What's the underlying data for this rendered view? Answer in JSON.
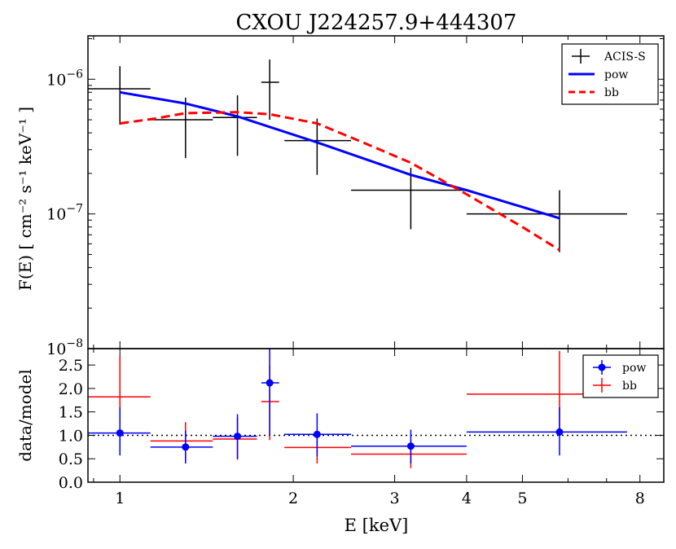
{
  "chart_data": [
    {
      "type": "line",
      "title": "CXOU J224257.9+444307",
      "xlabel": "",
      "ylabel": "F(E) [ cm⁻² s⁻¹ keV⁻¹ ]",
      "xscale": "log",
      "yscale": "log",
      "xlim": [
        0.88,
        8.8
      ],
      "ylim": [
        1e-08,
        2.1e-06
      ],
      "ytick_labels": [
        {
          "value": 1e-08,
          "base": "10",
          "exp": "−8"
        },
        {
          "value": 1e-07,
          "base": "10",
          "exp": "−7"
        },
        {
          "value": 1e-06,
          "base": "10",
          "exp": "−6"
        }
      ],
      "legend": {
        "placement": "top-right",
        "entries": [
          {
            "label": "ACIS-S",
            "style": "errorbar",
            "color": "#000000"
          },
          {
            "label": "pow",
            "style": "solid",
            "color": "#0000ff"
          },
          {
            "label": "bb",
            "style": "dashed",
            "color": "#ff0000"
          }
        ]
      },
      "data_points": [
        {
          "x": 1.0,
          "xlo": 0.88,
          "xhi": 1.13,
          "y": 8.5e-07,
          "ylo": 4.6e-07,
          "yhi": 1.25e-06
        },
        {
          "x": 1.3,
          "xlo": 1.13,
          "xhi": 1.45,
          "y": 5e-07,
          "ylo": 2.6e-07,
          "yhi": 7.3e-07
        },
        {
          "x": 1.6,
          "xlo": 1.45,
          "xhi": 1.73,
          "y": 5.2e-07,
          "ylo": 2.7e-07,
          "yhi": 7.6e-07
        },
        {
          "x": 1.82,
          "xlo": 1.76,
          "xhi": 1.89,
          "y": 9.5e-07,
          "ylo": 5e-07,
          "yhi": 1.4e-06
        },
        {
          "x": 2.2,
          "xlo": 1.93,
          "xhi": 2.52,
          "y": 3.5e-07,
          "ylo": 1.95e-07,
          "yhi": 5.1e-07
        },
        {
          "x": 3.2,
          "xlo": 2.52,
          "xhi": 4.0,
          "y": 1.5e-07,
          "ylo": 7.7e-08,
          "yhi": 2.2e-07
        },
        {
          "x": 5.8,
          "xlo": 4.0,
          "xhi": 7.6,
          "y": 1e-07,
          "ylo": 5.2e-08,
          "yhi": 1.5e-07
        }
      ],
      "series": [
        {
          "name": "pow",
          "color": "#0000ff",
          "dash": "solid",
          "x": [
            1.0,
            1.3,
            1.6,
            2.2,
            3.2,
            4.0,
            5.8
          ],
          "y": [
            8e-07,
            6.6e-07,
            5.3e-07,
            3.4e-07,
            1.95e-07,
            1.5e-07,
            9.3e-08
          ]
        },
        {
          "name": "bb",
          "color": "#ff0000",
          "dash": "dashed",
          "x": [
            1.0,
            1.15,
            1.3,
            1.6,
            1.82,
            2.2,
            2.6,
            3.2,
            4.0,
            5.0,
            5.8
          ],
          "y": [
            4.7e-07,
            5.1e-07,
            5.6e-07,
            5.7e-07,
            5.5e-07,
            4.7e-07,
            3.5e-07,
            2.4e-07,
            1.4e-07,
            8e-08,
            5.4e-08
          ]
        }
      ]
    },
    {
      "type": "scatter",
      "title": "",
      "xlabel": "E [keV]",
      "ylabel": "data/model",
      "xscale": "log",
      "xlim": [
        0.88,
        8.8
      ],
      "ylim": [
        0.0,
        2.85
      ],
      "xticks": [
        1,
        2,
        3,
        4,
        5,
        8
      ],
      "xtick_labels": [
        "1",
        "2",
        "3",
        "4",
        "5",
        "8"
      ],
      "yticks": [
        0.0,
        0.5,
        1.0,
        1.5,
        2.0,
        2.5
      ],
      "ytick_labels": [
        "0.0",
        "0.5",
        "1.0",
        "1.5",
        "2.0",
        "2.5"
      ],
      "reference_line": {
        "y": 1.0,
        "style": "dotted"
      },
      "legend": {
        "placement": "top-right",
        "entries": [
          {
            "label": "pow",
            "color": "#0000ff"
          },
          {
            "label": "bb",
            "color": "#ff0000"
          }
        ]
      },
      "series": [
        {
          "name": "pow",
          "color": "#0000ff",
          "marker": "circle",
          "points": [
            {
              "x": 1.0,
              "xlo": 0.88,
              "xhi": 1.13,
              "y": 1.05,
              "ylo": 0.57,
              "yhi": 1.6
            },
            {
              "x": 1.3,
              "xlo": 1.13,
              "xhi": 1.45,
              "y": 0.75,
              "ylo": 0.4,
              "yhi": 1.1
            },
            {
              "x": 1.6,
              "xlo": 1.45,
              "xhi": 1.73,
              "y": 0.98,
              "ylo": 0.5,
              "yhi": 1.45
            },
            {
              "x": 1.82,
              "xlo": 1.76,
              "xhi": 1.89,
              "y": 2.12,
              "ylo": 1.0,
              "yhi": 2.85
            },
            {
              "x": 2.2,
              "xlo": 1.93,
              "xhi": 2.52,
              "y": 1.02,
              "ylo": 0.55,
              "yhi": 1.47
            },
            {
              "x": 3.2,
              "xlo": 2.52,
              "xhi": 4.0,
              "y": 0.77,
              "ylo": 0.4,
              "yhi": 1.12
            },
            {
              "x": 5.8,
              "xlo": 4.0,
              "xhi": 7.6,
              "y": 1.07,
              "ylo": 0.57,
              "yhi": 1.6
            }
          ]
        },
        {
          "name": "bb",
          "color": "#ff0000",
          "marker": "none",
          "points": [
            {
              "x": 1.0,
              "xlo": 0.88,
              "xhi": 1.13,
              "y": 1.82,
              "ylo": 1.0,
              "yhi": 2.7
            },
            {
              "x": 1.3,
              "xlo": 1.13,
              "xhi": 1.45,
              "y": 0.88,
              "ylo": 0.45,
              "yhi": 1.28
            },
            {
              "x": 1.6,
              "xlo": 1.45,
              "xhi": 1.73,
              "y": 0.92,
              "ylo": 0.48,
              "yhi": 1.38
            },
            {
              "x": 1.82,
              "xlo": 1.76,
              "xhi": 1.89,
              "y": 1.72,
              "ylo": 0.9,
              "yhi": 2.5
            },
            {
              "x": 2.2,
              "xlo": 1.93,
              "xhi": 2.52,
              "y": 0.74,
              "ylo": 0.4,
              "yhi": 1.1
            },
            {
              "x": 3.2,
              "xlo": 2.52,
              "xhi": 4.0,
              "y": 0.6,
              "ylo": 0.3,
              "yhi": 0.9
            },
            {
              "x": 5.8,
              "xlo": 4.0,
              "xhi": 7.6,
              "y": 1.88,
              "ylo": 1.0,
              "yhi": 2.8
            }
          ]
        }
      ]
    }
  ]
}
